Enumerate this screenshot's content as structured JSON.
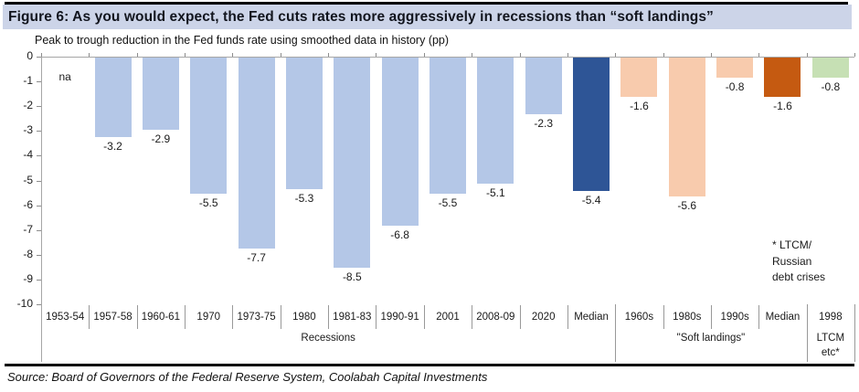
{
  "title": "Figure 6: As you would expect, the Fed cuts rates more aggressively in recessions than “soft landings”",
  "subtitle": "Peak to trough reduction in the Fed funds rate using smoothed data in history (pp)",
  "source": "Source: Board of Governors of the Federal Reserve System, Coolabah Capital Investments",
  "annotation": "* LTCM/\nRussian\ndebt crises",
  "colors": {
    "title_bar_bg": "#ccd4e8",
    "recession_bar": "#b4c7e7",
    "recession_median_bar": "#2e5596",
    "soft_landing_bar": "#f8cbad",
    "soft_landing_median_bar": "#c55a11",
    "ltcm_bar": "#c6e0b4",
    "rule": "#000000"
  },
  "chart_data": {
    "type": "bar",
    "title": "Figure 6: As you would expect, the Fed cuts rates more aggressively in recessions than “soft landings”",
    "ylabel": "Peak to trough reduction in the Fed funds rate using smoothed data in history (pp)",
    "xlabel": "",
    "ylim": [
      0,
      -10
    ],
    "y_ticks": [
      0,
      -1,
      -2,
      -3,
      -4,
      -5,
      -6,
      -7,
      -8,
      -9,
      -10
    ],
    "grid": false,
    "legend": false,
    "bars": [
      {
        "category": "1953-54",
        "value": null,
        "label": "na",
        "color": null
      },
      {
        "category": "1957-58",
        "value": -3.2,
        "label": "-3.2",
        "color": "#b4c7e7"
      },
      {
        "category": "1960-61",
        "value": -2.9,
        "label": "-2.9",
        "color": "#b4c7e7"
      },
      {
        "category": "1970",
        "value": -5.5,
        "label": "-5.5",
        "color": "#b4c7e7"
      },
      {
        "category": "1973-75",
        "value": -7.7,
        "label": "-7.7",
        "color": "#b4c7e7"
      },
      {
        "category": "1980",
        "value": -5.3,
        "label": "-5.3",
        "color": "#b4c7e7"
      },
      {
        "category": "1981-83",
        "value": -8.5,
        "label": "-8.5",
        "color": "#b4c7e7"
      },
      {
        "category": "1990-91",
        "value": -6.8,
        "label": "-6.8",
        "color": "#b4c7e7"
      },
      {
        "category": "2001",
        "value": -5.5,
        "label": "-5.5",
        "color": "#b4c7e7"
      },
      {
        "category": "2008-09",
        "value": -5.1,
        "label": "-5.1",
        "color": "#b4c7e7"
      },
      {
        "category": "2020",
        "value": -2.3,
        "label": "-2.3",
        "color": "#b4c7e7"
      },
      {
        "category": "Median",
        "value": -5.4,
        "label": "-5.4",
        "color": "#2e5596"
      },
      {
        "category": "1960s",
        "value": -1.6,
        "label": "-1.6",
        "color": "#f8cbad"
      },
      {
        "category": "1980s",
        "value": -5.6,
        "label": "-5.6",
        "color": "#f8cbad"
      },
      {
        "category": "1990s",
        "value": -0.8,
        "label": "-0.8",
        "color": "#f8cbad"
      },
      {
        "category": "Median",
        "value": -1.6,
        "label": "-1.6",
        "color": "#c55a11"
      },
      {
        "category": "1998",
        "value": -0.8,
        "label": "-0.8",
        "color": "#c6e0b4"
      }
    ],
    "groups": [
      {
        "label": "Recessions",
        "from": 0,
        "to": 11
      },
      {
        "label": "\"Soft landings\"",
        "from": 12,
        "to": 15
      },
      {
        "label": "LTCM\netc*",
        "from": 16,
        "to": 16
      }
    ]
  }
}
